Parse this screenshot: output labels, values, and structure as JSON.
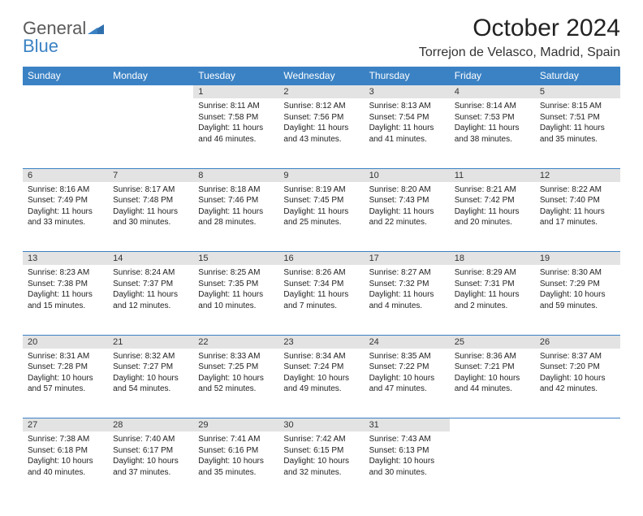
{
  "brand": {
    "name_part1": "General",
    "name_part2": "Blue"
  },
  "title": "October 2024",
  "location": "Torrejon de Velasco, Madrid, Spain",
  "colors": {
    "header_bg": "#3b82c4",
    "header_text": "#ffffff",
    "daynum_bg": "#e3e3e3",
    "page_bg": "#ffffff",
    "text": "#222222"
  },
  "typography": {
    "title_fontsize": 30,
    "location_fontsize": 16,
    "header_fontsize": 12,
    "daynum_fontsize": 11,
    "body_fontsize": 10
  },
  "day_headers": [
    "Sunday",
    "Monday",
    "Tuesday",
    "Wednesday",
    "Thursday",
    "Friday",
    "Saturday"
  ],
  "weeks": [
    [
      null,
      null,
      {
        "n": "1",
        "sunrise": "Sunrise: 8:11 AM",
        "sunset": "Sunset: 7:58 PM",
        "daylight": "Daylight: 11 hours and 46 minutes."
      },
      {
        "n": "2",
        "sunrise": "Sunrise: 8:12 AM",
        "sunset": "Sunset: 7:56 PM",
        "daylight": "Daylight: 11 hours and 43 minutes."
      },
      {
        "n": "3",
        "sunrise": "Sunrise: 8:13 AM",
        "sunset": "Sunset: 7:54 PM",
        "daylight": "Daylight: 11 hours and 41 minutes."
      },
      {
        "n": "4",
        "sunrise": "Sunrise: 8:14 AM",
        "sunset": "Sunset: 7:53 PM",
        "daylight": "Daylight: 11 hours and 38 minutes."
      },
      {
        "n": "5",
        "sunrise": "Sunrise: 8:15 AM",
        "sunset": "Sunset: 7:51 PM",
        "daylight": "Daylight: 11 hours and 35 minutes."
      }
    ],
    [
      {
        "n": "6",
        "sunrise": "Sunrise: 8:16 AM",
        "sunset": "Sunset: 7:49 PM",
        "daylight": "Daylight: 11 hours and 33 minutes."
      },
      {
        "n": "7",
        "sunrise": "Sunrise: 8:17 AM",
        "sunset": "Sunset: 7:48 PM",
        "daylight": "Daylight: 11 hours and 30 minutes."
      },
      {
        "n": "8",
        "sunrise": "Sunrise: 8:18 AM",
        "sunset": "Sunset: 7:46 PM",
        "daylight": "Daylight: 11 hours and 28 minutes."
      },
      {
        "n": "9",
        "sunrise": "Sunrise: 8:19 AM",
        "sunset": "Sunset: 7:45 PM",
        "daylight": "Daylight: 11 hours and 25 minutes."
      },
      {
        "n": "10",
        "sunrise": "Sunrise: 8:20 AM",
        "sunset": "Sunset: 7:43 PM",
        "daylight": "Daylight: 11 hours and 22 minutes."
      },
      {
        "n": "11",
        "sunrise": "Sunrise: 8:21 AM",
        "sunset": "Sunset: 7:42 PM",
        "daylight": "Daylight: 11 hours and 20 minutes."
      },
      {
        "n": "12",
        "sunrise": "Sunrise: 8:22 AM",
        "sunset": "Sunset: 7:40 PM",
        "daylight": "Daylight: 11 hours and 17 minutes."
      }
    ],
    [
      {
        "n": "13",
        "sunrise": "Sunrise: 8:23 AM",
        "sunset": "Sunset: 7:38 PM",
        "daylight": "Daylight: 11 hours and 15 minutes."
      },
      {
        "n": "14",
        "sunrise": "Sunrise: 8:24 AM",
        "sunset": "Sunset: 7:37 PM",
        "daylight": "Daylight: 11 hours and 12 minutes."
      },
      {
        "n": "15",
        "sunrise": "Sunrise: 8:25 AM",
        "sunset": "Sunset: 7:35 PM",
        "daylight": "Daylight: 11 hours and 10 minutes."
      },
      {
        "n": "16",
        "sunrise": "Sunrise: 8:26 AM",
        "sunset": "Sunset: 7:34 PM",
        "daylight": "Daylight: 11 hours and 7 minutes."
      },
      {
        "n": "17",
        "sunrise": "Sunrise: 8:27 AM",
        "sunset": "Sunset: 7:32 PM",
        "daylight": "Daylight: 11 hours and 4 minutes."
      },
      {
        "n": "18",
        "sunrise": "Sunrise: 8:29 AM",
        "sunset": "Sunset: 7:31 PM",
        "daylight": "Daylight: 11 hours and 2 minutes."
      },
      {
        "n": "19",
        "sunrise": "Sunrise: 8:30 AM",
        "sunset": "Sunset: 7:29 PM",
        "daylight": "Daylight: 10 hours and 59 minutes."
      }
    ],
    [
      {
        "n": "20",
        "sunrise": "Sunrise: 8:31 AM",
        "sunset": "Sunset: 7:28 PM",
        "daylight": "Daylight: 10 hours and 57 minutes."
      },
      {
        "n": "21",
        "sunrise": "Sunrise: 8:32 AM",
        "sunset": "Sunset: 7:27 PM",
        "daylight": "Daylight: 10 hours and 54 minutes."
      },
      {
        "n": "22",
        "sunrise": "Sunrise: 8:33 AM",
        "sunset": "Sunset: 7:25 PM",
        "daylight": "Daylight: 10 hours and 52 minutes."
      },
      {
        "n": "23",
        "sunrise": "Sunrise: 8:34 AM",
        "sunset": "Sunset: 7:24 PM",
        "daylight": "Daylight: 10 hours and 49 minutes."
      },
      {
        "n": "24",
        "sunrise": "Sunrise: 8:35 AM",
        "sunset": "Sunset: 7:22 PM",
        "daylight": "Daylight: 10 hours and 47 minutes."
      },
      {
        "n": "25",
        "sunrise": "Sunrise: 8:36 AM",
        "sunset": "Sunset: 7:21 PM",
        "daylight": "Daylight: 10 hours and 44 minutes."
      },
      {
        "n": "26",
        "sunrise": "Sunrise: 8:37 AM",
        "sunset": "Sunset: 7:20 PM",
        "daylight": "Daylight: 10 hours and 42 minutes."
      }
    ],
    [
      {
        "n": "27",
        "sunrise": "Sunrise: 7:38 AM",
        "sunset": "Sunset: 6:18 PM",
        "daylight": "Daylight: 10 hours and 40 minutes."
      },
      {
        "n": "28",
        "sunrise": "Sunrise: 7:40 AM",
        "sunset": "Sunset: 6:17 PM",
        "daylight": "Daylight: 10 hours and 37 minutes."
      },
      {
        "n": "29",
        "sunrise": "Sunrise: 7:41 AM",
        "sunset": "Sunset: 6:16 PM",
        "daylight": "Daylight: 10 hours and 35 minutes."
      },
      {
        "n": "30",
        "sunrise": "Sunrise: 7:42 AM",
        "sunset": "Sunset: 6:15 PM",
        "daylight": "Daylight: 10 hours and 32 minutes."
      },
      {
        "n": "31",
        "sunrise": "Sunrise: 7:43 AM",
        "sunset": "Sunset: 6:13 PM",
        "daylight": "Daylight: 10 hours and 30 minutes."
      },
      null,
      null
    ]
  ]
}
